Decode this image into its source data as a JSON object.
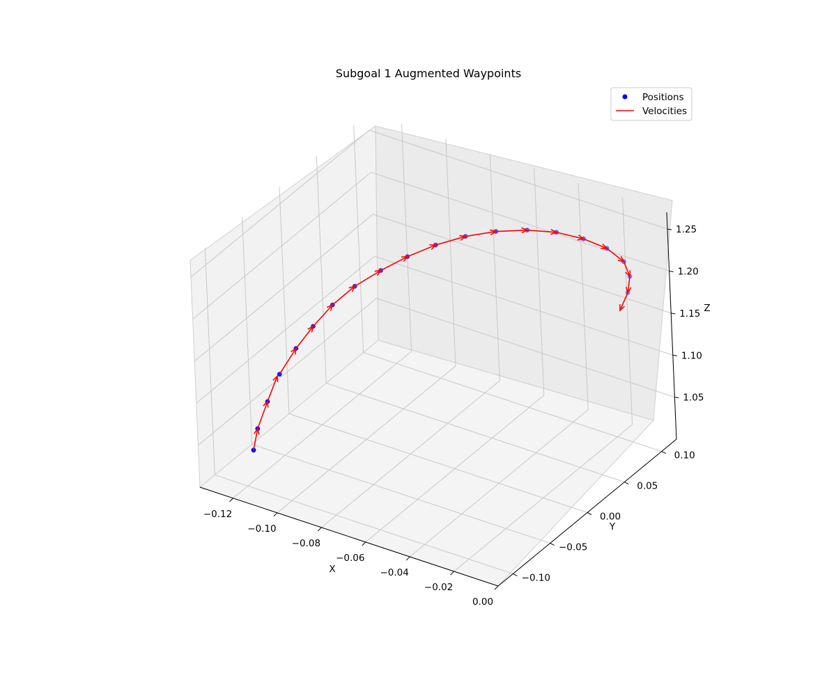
{
  "chart_data": {
    "type": "scatter3d",
    "title": "Subgoal 1 Augmented Waypoints",
    "xlabel": "X",
    "ylabel": "Y",
    "zlabel": "Z",
    "xlim": [
      -0.135,
      0.0
    ],
    "ylim": [
      -0.12,
      0.12
    ],
    "zlim": [
      1.0,
      1.27
    ],
    "x_ticks": [
      -0.12,
      -0.1,
      -0.08,
      -0.06,
      -0.04,
      -0.02,
      0.0
    ],
    "x_tick_labels": [
      "−0.12",
      "−0.10",
      "−0.08",
      "−0.06",
      "−0.04",
      "−0.02",
      "0.00"
    ],
    "y_ticks": [
      -0.1,
      -0.05,
      0.0,
      0.05,
      0.1
    ],
    "y_tick_labels": [
      "−0.10",
      "−0.05",
      "0.00",
      "0.05",
      "0.10"
    ],
    "z_ticks": [
      1.05,
      1.1,
      1.15,
      1.2,
      1.25
    ],
    "z_tick_labels": [
      "1.05",
      "1.10",
      "1.15",
      "1.20",
      "1.25"
    ],
    "grid": true,
    "legend_position": "upper-right",
    "legend": [
      {
        "label": "Positions",
        "marker": "dot",
        "color": "#0000ff"
      },
      {
        "label": "Velocities",
        "marker": "line",
        "color": "#ff0000"
      }
    ],
    "series": [
      {
        "name": "Positions",
        "color": "#0000ff",
        "points": [
          [
            -0.122,
            -0.085,
            1.03
          ],
          [
            -0.125,
            -0.07,
            1.042
          ],
          [
            -0.127,
            -0.05,
            1.058
          ],
          [
            -0.128,
            -0.03,
            1.075
          ],
          [
            -0.127,
            -0.01,
            1.092
          ],
          [
            -0.124,
            0.005,
            1.11
          ],
          [
            -0.12,
            0.02,
            1.128
          ],
          [
            -0.114,
            0.033,
            1.146
          ],
          [
            -0.106,
            0.045,
            1.163
          ],
          [
            -0.097,
            0.055,
            1.18
          ],
          [
            -0.087,
            0.064,
            1.196
          ],
          [
            -0.076,
            0.072,
            1.21
          ],
          [
            -0.064,
            0.078,
            1.222
          ],
          [
            -0.051,
            0.082,
            1.232
          ],
          [
            -0.038,
            0.083,
            1.24
          ],
          [
            -0.025,
            0.081,
            1.245
          ],
          [
            -0.013,
            0.077,
            1.247
          ],
          [
            -0.003,
            0.07,
            1.245
          ],
          [
            0.003,
            0.06,
            1.24
          ],
          [
            0.006,
            0.048,
            1.232
          ]
        ]
      },
      {
        "name": "Velocities",
        "color": "#ff0000",
        "vectors": [
          [
            -0.003,
            0.015,
            0.012
          ],
          [
            -0.002,
            0.02,
            0.016
          ],
          [
            -0.001,
            0.017,
            0.017
          ],
          [
            0.001,
            0.02,
            0.017
          ],
          [
            0.003,
            0.015,
            0.018
          ],
          [
            0.004,
            0.015,
            0.018
          ],
          [
            0.006,
            0.013,
            0.018
          ],
          [
            0.008,
            0.012,
            0.017
          ],
          [
            0.009,
            0.01,
            0.017
          ],
          [
            0.01,
            0.009,
            0.016
          ],
          [
            0.011,
            0.008,
            0.014
          ],
          [
            0.012,
            0.006,
            0.012
          ],
          [
            0.013,
            0.004,
            0.01
          ],
          [
            0.013,
            0.001,
            0.008
          ],
          [
            0.013,
            -0.002,
            0.005
          ],
          [
            0.012,
            -0.004,
            0.002
          ],
          [
            0.01,
            -0.007,
            -0.002
          ],
          [
            0.006,
            -0.01,
            -0.005
          ],
          [
            0.003,
            -0.012,
            -0.008
          ],
          [
            0.001,
            -0.014,
            -0.01
          ]
        ]
      }
    ]
  }
}
